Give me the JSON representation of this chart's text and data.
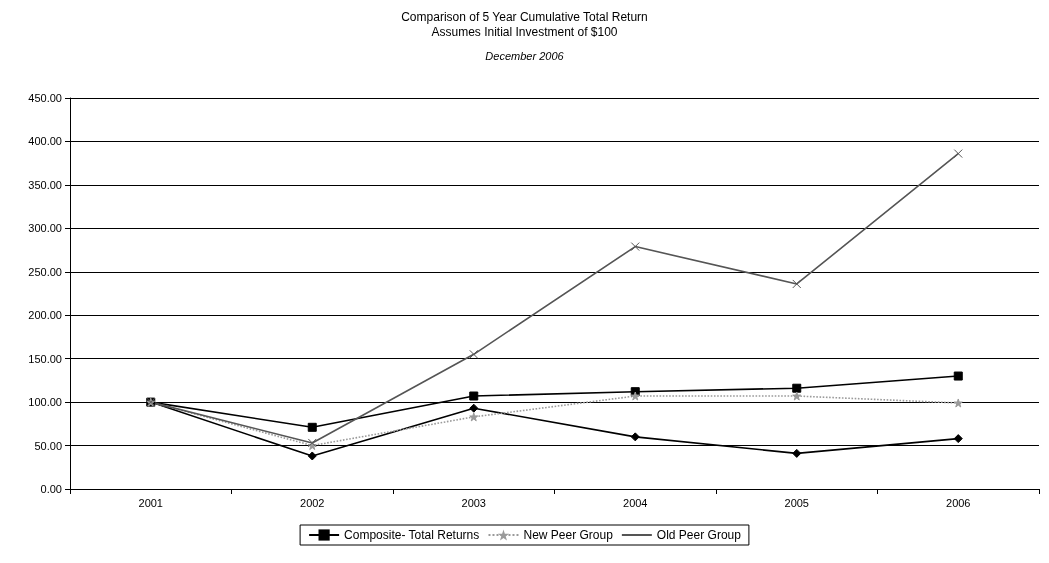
{
  "chart_data": {
    "type": "line",
    "title": "Comparison of 5 Year Cumulative Total Return",
    "subtitle": "Assumes Initial Investment of $100",
    "annotations": [
      "December 2006"
    ],
    "categories": [
      "2001",
      "2002",
      "2003",
      "2004",
      "2005",
      "2006"
    ],
    "series": [
      {
        "color": "#000000",
        "marker": "diamond",
        "values": [
          100,
          38,
          93,
          60,
          41,
          58
        ]
      },
      {
        "name": "Composite- Total Returns",
        "color": "#000000",
        "marker": "square",
        "values": [
          100,
          71,
          107,
          112,
          116,
          130
        ]
      },
      {
        "name": "New Peer Group",
        "color": "#9a9a9a",
        "marker": "star",
        "line_style": "dotted",
        "values": [
          100,
          50,
          83,
          107,
          107,
          99
        ]
      },
      {
        "name": "Old Peer Group",
        "color": "#555555",
        "marker": "cross",
        "values": [
          100,
          53,
          155,
          279,
          236,
          386
        ]
      }
    ],
    "ylim": [
      0,
      450
    ],
    "yticks": [
      {
        "value": 0,
        "label": "0.00"
      },
      {
        "value": 50,
        "label": "50.00"
      },
      {
        "value": 100,
        "label": "100.00"
      },
      {
        "value": 150,
        "label": "150.00"
      },
      {
        "value": 200,
        "label": "200.00"
      },
      {
        "value": 250,
        "label": "250.00"
      },
      {
        "value": 300,
        "label": "300.00"
      },
      {
        "value": 350,
        "label": "350.00"
      },
      {
        "value": 400,
        "label": "400.00"
      },
      {
        "value": 450,
        "label": "450.00"
      }
    ],
    "grid": "y",
    "legend": "bottom"
  }
}
